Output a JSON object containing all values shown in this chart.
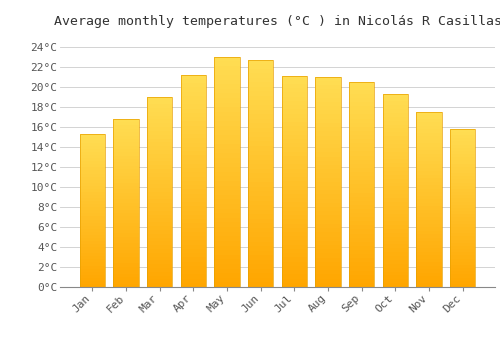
{
  "title": "Average monthly temperatures (°C ) in Nicolás R Casillas",
  "months": [
    "Jan",
    "Feb",
    "Mar",
    "Apr",
    "May",
    "Jun",
    "Jul",
    "Aug",
    "Sep",
    "Oct",
    "Nov",
    "Dec"
  ],
  "temperatures": [
    15.3,
    16.8,
    19.0,
    21.2,
    23.0,
    22.7,
    21.1,
    21.0,
    20.5,
    19.3,
    17.5,
    15.8
  ],
  "bar_color_top": "#FFCC44",
  "bar_color_bottom": "#FFA500",
  "bar_edge_color": "#E8A000",
  "background_color": "#FFFFFF",
  "grid_color": "#CCCCCC",
  "yticks": [
    0,
    2,
    4,
    6,
    8,
    10,
    12,
    14,
    16,
    18,
    20,
    22,
    24
  ],
  "ylim": [
    0,
    25.5
  ],
  "title_fontsize": 9.5,
  "tick_fontsize": 8,
  "font_family": "monospace"
}
